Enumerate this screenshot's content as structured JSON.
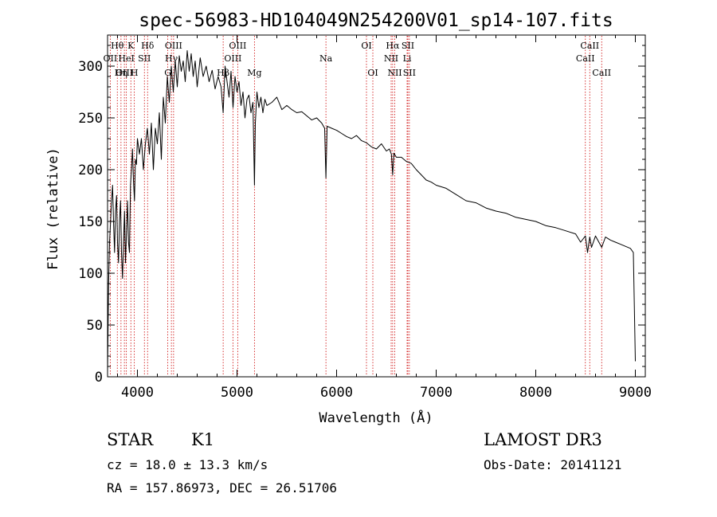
{
  "chart_data": {
    "type": "line",
    "title": "spec-56983-HD104049N254200V01_sp14-107.fits",
    "xlabel": "Wavelength (Å)",
    "ylabel": "Flux (relative)",
    "xlim": [
      3700,
      9100
    ],
    "ylim": [
      0,
      330
    ],
    "xticks": [
      4000,
      5000,
      6000,
      7000,
      8000,
      9000
    ],
    "yticks": [
      0,
      50,
      100,
      150,
      200,
      250,
      300
    ],
    "series": [
      {
        "name": "flux",
        "x": [
          3700,
          3710,
          3720,
          3730,
          3740,
          3750,
          3760,
          3770,
          3780,
          3790,
          3800,
          3810,
          3820,
          3830,
          3840,
          3850,
          3860,
          3870,
          3880,
          3890,
          3900,
          3910,
          3920,
          3930,
          3940,
          3950,
          3960,
          3970,
          3980,
          3990,
          4000,
          4020,
          4040,
          4060,
          4080,
          4100,
          4120,
          4140,
          4160,
          4180,
          4200,
          4220,
          4240,
          4260,
          4280,
          4300,
          4320,
          4340,
          4360,
          4380,
          4400,
          4420,
          4440,
          4460,
          4480,
          4500,
          4520,
          4540,
          4560,
          4580,
          4600,
          4630,
          4660,
          4690,
          4720,
          4750,
          4780,
          4810,
          4840,
          4861,
          4880,
          4900,
          4920,
          4940,
          4960,
          4980,
          5000,
          5020,
          5040,
          5060,
          5080,
          5100,
          5120,
          5140,
          5160,
          5175,
          5184,
          5200,
          5220,
          5240,
          5260,
          5280,
          5300,
          5350,
          5400,
          5450,
          5500,
          5550,
          5600,
          5650,
          5700,
          5750,
          5800,
          5850,
          5880,
          5893,
          5905,
          5950,
          6000,
          6050,
          6100,
          6150,
          6200,
          6250,
          6300,
          6350,
          6400,
          6450,
          6500,
          6530,
          6550,
          6563,
          6575,
          6600,
          6650,
          6700,
          6750,
          6800,
          6850,
          6900,
          6950,
          7000,
          7100,
          7200,
          7300,
          7400,
          7500,
          7600,
          7700,
          7800,
          7900,
          8000,
          8100,
          8200,
          8300,
          8400,
          8450,
          8498,
          8520,
          8542,
          8560,
          8600,
          8662,
          8700,
          8750,
          8800,
          8850,
          8900,
          8950,
          8980,
          9000
        ],
        "values": [
          5,
          90,
          130,
          150,
          170,
          185,
          150,
          120,
          160,
          175,
          130,
          110,
          150,
          170,
          120,
          95,
          130,
          160,
          110,
          140,
          170,
          130,
          120,
          185,
          200,
          220,
          190,
          170,
          210,
          205,
          230,
          215,
          230,
          200,
          225,
          240,
          215,
          245,
          200,
          240,
          225,
          255,
          210,
          270,
          245,
          290,
          265,
          300,
          275,
          305,
          280,
          310,
          295,
          305,
          285,
          315,
          295,
          312,
          290,
          305,
          280,
          308,
          290,
          300,
          285,
          296,
          278,
          290,
          280,
          255,
          300,
          285,
          270,
          295,
          260,
          290,
          275,
          285,
          262,
          275,
          250,
          268,
          272,
          255,
          265,
          185,
          245,
          275,
          260,
          270,
          255,
          268,
          262,
          265,
          270,
          258,
          262,
          258,
          255,
          256,
          252,
          248,
          250,
          245,
          240,
          192,
          242,
          240,
          238,
          235,
          232,
          230,
          233,
          228,
          226,
          222,
          220,
          225,
          218,
          220,
          215,
          195,
          216,
          212,
          212,
          208,
          206,
          200,
          195,
          190,
          188,
          185,
          182,
          176,
          170,
          168,
          163,
          160,
          158,
          154,
          152,
          150,
          146,
          144,
          141,
          138,
          130,
          136,
          120,
          135,
          125,
          136,
          125,
          135,
          132,
          130,
          128,
          126,
          124,
          120,
          15
        ]
      }
    ],
    "lines": [
      {
        "name": "Hθ",
        "wl": 3798,
        "row": 1
      },
      {
        "name": "OII",
        "wl": 3727,
        "row": 2
      },
      {
        "name": "OIII",
        "wl": 3869,
        "row": 3
      },
      {
        "name": "Hη",
        "wl": 3835,
        "row": 3
      },
      {
        "name": "K",
        "wl": 3934,
        "row": 1
      },
      {
        "name": "HeI",
        "wl": 3889,
        "row": 2
      },
      {
        "name": "H",
        "wl": 3969,
        "row": 3
      },
      {
        "name": "Hδ",
        "wl": 4102,
        "row": 1
      },
      {
        "name": "SII",
        "wl": 4070,
        "row": 2
      },
      {
        "name": "OIII",
        "wl": 4363,
        "row": 1
      },
      {
        "name": "Hγ",
        "wl": 4341,
        "row": 2
      },
      {
        "name": "G",
        "wl": 4305,
        "row": 3
      },
      {
        "name": "OIII",
        "wl": 5007,
        "row": 1
      },
      {
        "name": "OIII",
        "wl": 4959,
        "row": 2
      },
      {
        "name": "Hβ",
        "wl": 4861,
        "row": 3
      },
      {
        "name": "Mg",
        "wl": 5175,
        "row": 3
      },
      {
        "name": "Na",
        "wl": 5893,
        "row": 2
      },
      {
        "name": "OI",
        "wl": 6300,
        "row": 1
      },
      {
        "name": "OI",
        "wl": 6364,
        "row": 3
      },
      {
        "name": "Hα",
        "wl": 6563,
        "row": 1
      },
      {
        "name": "SII",
        "wl": 6716,
        "row": 1
      },
      {
        "name": "NII",
        "wl": 6548,
        "row": 2
      },
      {
        "name": "Li",
        "wl": 6708,
        "row": 2
      },
      {
        "name": "NII",
        "wl": 6584,
        "row": 3
      },
      {
        "name": "SII",
        "wl": 6731,
        "row": 3
      },
      {
        "name": "CaII",
        "wl": 8542,
        "row": 1
      },
      {
        "name": "CaII",
        "wl": 8498,
        "row": 2
      },
      {
        "name": "CaII",
        "wl": 8662,
        "row": 3
      }
    ]
  },
  "info": {
    "class": "STAR",
    "subclass": "K1",
    "survey": "LAMOST DR3",
    "cz": "cz = 18.0 ± 13.3 km/s",
    "obs_date": "Obs-Date: 20141121",
    "coords": "RA = 157.86973, DEC =  26.51706"
  }
}
